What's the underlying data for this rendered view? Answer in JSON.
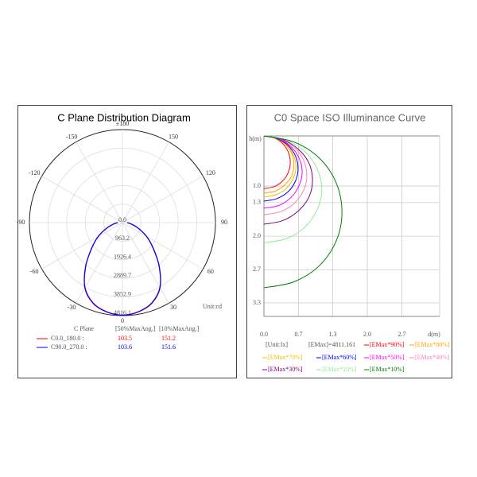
{
  "chart_data": [
    {
      "type": "polar",
      "title": "C Plane Distribution Diagram",
      "angles": [
        -90,
        -80,
        -70,
        -60,
        -50,
        -40,
        -30,
        -20,
        -10,
        0,
        10,
        20,
        30,
        40,
        50,
        60,
        70,
        80,
        90
      ],
      "rlim": [
        0,
        4816.1
      ],
      "rticks": [
        {
          "value": 0,
          "label": "0.0"
        },
        963.2,
        1926.4,
        2889.7,
        3852.9,
        4816.1
      ],
      "angle_ticks": [
        0,
        30,
        60,
        90,
        120,
        150,
        {
          "value": 180,
          "label": "±180"
        },
        -150,
        -120,
        -90,
        -60,
        -30
      ],
      "unit": "Unit:cd",
      "legend_header": [
        "C Plane",
        "[50%MaxAng.]",
        "[10%MaxAng.]"
      ],
      "series": [
        {
          "name": "C0.0_180.0 :",
          "color": "#ff0000",
          "beam_50": 103.5,
          "beam_10": 151.2,
          "values": [
            250,
            500,
            900,
            1450,
            2100,
            2950,
            3900,
            4450,
            4700,
            4800,
            4700,
            4450,
            3900,
            2950,
            2100,
            1450,
            900,
            500,
            250
          ]
        },
        {
          "name": "C90.0_270.0 :",
          "color": "#0000ff",
          "beam_50": 103.6,
          "beam_10": 151.6,
          "values": [
            240,
            480,
            880,
            1460,
            2080,
            2970,
            3880,
            4430,
            4690,
            4790,
            4690,
            4430,
            3880,
            2970,
            2080,
            1460,
            880,
            480,
            240
          ]
        }
      ]
    },
    {
      "type": "iso",
      "title": "C0 Space ISO Illuminance Curve",
      "xlabel": "d(m)",
      "ylabel": "h(m)",
      "xlim": [
        0,
        3.4
      ],
      "ylim": [
        0,
        3.6
      ],
      "xticks": [
        {
          "value": 0,
          "label": "0.0"
        },
        {
          "value": 0.67,
          "label": "0.7"
        },
        {
          "value": 1.33,
          "label": "1.3"
        },
        {
          "value": 2,
          "label": "2.0"
        },
        {
          "value": 2.67,
          "label": "2.7"
        }
      ],
      "yticks": [
        {
          "value": 1,
          "label": "1.0"
        },
        {
          "value": 1.33,
          "label": "1.3"
        },
        {
          "value": 2,
          "label": "2.0"
        },
        {
          "value": 2.67,
          "label": "2.7"
        },
        {
          "value": 3.33,
          "label": "3.3"
        }
      ],
      "notes": [
        "[Unit:lx]",
        "[EMax]=4811.161"
      ],
      "series": [
        {
          "name": "[EMax*90%]",
          "color": "#ff0000",
          "x": [
            0,
            0.2,
            0.36,
            0.47,
            0.51,
            0.47,
            0.36,
            0.2,
            0
          ],
          "y": [
            0,
            0.04,
            0.15,
            0.32,
            0.53,
            0.73,
            0.9,
            1.01,
            1.05
          ]
        },
        {
          "name": "[EMax*80%]",
          "color": "#ffa500",
          "x": [
            0,
            0.22,
            0.41,
            0.54,
            0.58,
            0.54,
            0.41,
            0.22,
            0
          ],
          "y": [
            0,
            0.04,
            0.17,
            0.35,
            0.57,
            0.79,
            0.97,
            1.1,
            1.14
          ]
        },
        {
          "name": "[EMax*70%]",
          "color": "#f0c000",
          "x": [
            0,
            0.24,
            0.44,
            0.57,
            0.62,
            0.57,
            0.44,
            0.24,
            0
          ],
          "y": [
            0,
            0.05,
            0.18,
            0.38,
            0.61,
            0.84,
            1.04,
            1.17,
            1.22
          ]
        },
        {
          "name": "[EMax*60%]",
          "color": "#0000ff",
          "x": [
            0,
            0.25,
            0.47,
            0.61,
            0.66,
            0.61,
            0.47,
            0.25,
            0
          ],
          "y": [
            0,
            0.05,
            0.19,
            0.4,
            0.65,
            0.9,
            1.11,
            1.25,
            1.3
          ]
        },
        {
          "name": "[EMax*50%]",
          "color": "#ff00ff",
          "x": [
            0,
            0.28,
            0.52,
            0.68,
            0.74,
            0.68,
            0.52,
            0.28,
            0
          ],
          "y": [
            0,
            0.05,
            0.21,
            0.44,
            0.72,
            0.99,
            1.23,
            1.39,
            1.44
          ]
        },
        {
          "name": "[EMax*40%]",
          "color": "#ff80c0",
          "x": [
            0,
            0.32,
            0.59,
            0.77,
            0.83,
            0.77,
            0.59,
            0.32,
            0
          ],
          "y": [
            0,
            0.06,
            0.23,
            0.49,
            0.79,
            1.08,
            1.34,
            1.51,
            1.57
          ]
        },
        {
          "name": "[EMax*30%]",
          "color": "#800080",
          "x": [
            0,
            0.36,
            0.66,
            0.87,
            0.94,
            0.87,
            0.66,
            0.36,
            0
          ],
          "y": [
            0,
            0.07,
            0.26,
            0.54,
            0.88,
            1.22,
            1.5,
            1.69,
            1.76
          ]
        },
        {
          "name": "[EMax*20%]",
          "color": "#90ee90",
          "x": [
            0,
            0.43,
            0.79,
            1.03,
            1.12,
            1.03,
            0.79,
            0.43,
            0
          ],
          "y": [
            0,
            0.08,
            0.31,
            0.66,
            1.07,
            1.47,
            1.82,
            2.05,
            2.13
          ]
        },
        {
          "name": "[EMax*10%]",
          "color": "#008000",
          "x": [
            0,
            0.58,
            1.07,
            1.4,
            1.51,
            1.4,
            1.07,
            0.58,
            0
          ],
          "y": [
            0,
            0.12,
            0.44,
            0.94,
            1.52,
            2.09,
            2.59,
            2.91,
            3.03
          ]
        }
      ]
    }
  ]
}
